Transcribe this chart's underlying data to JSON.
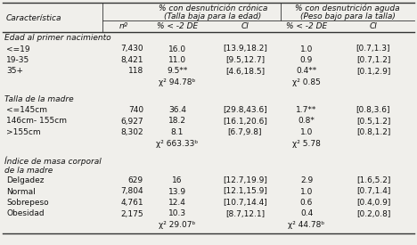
{
  "title_row1": "% con desnutrición crónica",
  "title_row1b": "(Talla baja para la edad)",
  "title_row2": "% con desnutrición aguda",
  "title_row2b": "(Peso bajo para la talla)",
  "sections": [
    {
      "header": "Edad al primer nacimiento",
      "rows": [
        [
          "<=19",
          "7,430",
          "16.0",
          "[13.9,18.2]",
          "1.0",
          "[0.7,1.3]"
        ],
        [
          "19-35",
          "8,421",
          "11.0",
          "[9.5,12.7]",
          "0.9",
          "[0.7,1.2]"
        ],
        [
          "35+",
          "118",
          "9.5**",
          "[4.6,18.5]",
          "0.4**",
          "[0.1,2.9]"
        ]
      ],
      "chi2_chronic": "χ² 94.78ᵇ",
      "chi2_acute": "χ² 0.85"
    },
    {
      "header": "Talla de la madre",
      "rows": [
        [
          "<=145cm",
          "740",
          "36.4",
          "[29.8,43.6]",
          "1.7**",
          "[0.8,3.6]"
        ],
        [
          "146cm- 155cm",
          "6,927",
          "18.2",
          "[16.1,20.6]",
          "0.8*",
          "[0.5,1.2]"
        ],
        [
          ">155cm",
          "8,302",
          "8.1",
          "[6.7,9.8]",
          "1.0",
          "[0.8,1.2]"
        ]
      ],
      "chi2_chronic": "χ² 663.33ᵇ",
      "chi2_acute": "χ² 5.78"
    },
    {
      "header": "Índice de masa corporal",
      "header2": "de la madre",
      "rows": [
        [
          "Delgadez",
          "629",
          "16",
          "[12.7,19.9]",
          "2.9",
          "[1.6,5.2]"
        ],
        [
          "Normal",
          "7,804",
          "13.9",
          "[12.1,15.9]",
          "1.0",
          "[0.7,1.4]"
        ],
        [
          "Sobrepeso",
          "4,761",
          "12.4",
          "[10.7,14.4]",
          "0.6",
          "[0.4,0.9]"
        ],
        [
          "Obesidad",
          "2,175",
          "10.3",
          "[8.7,12.1]",
          "0.4",
          "[0.2,0.8]"
        ]
      ],
      "chi2_chronic": "χ² 29.07ᵇ",
      "chi2_acute": "χ² 44.78ᵇ"
    }
  ],
  "bg_color": "#f0efeb",
  "line_color": "#333333",
  "text_color": "#111111",
  "font_size": 6.5
}
